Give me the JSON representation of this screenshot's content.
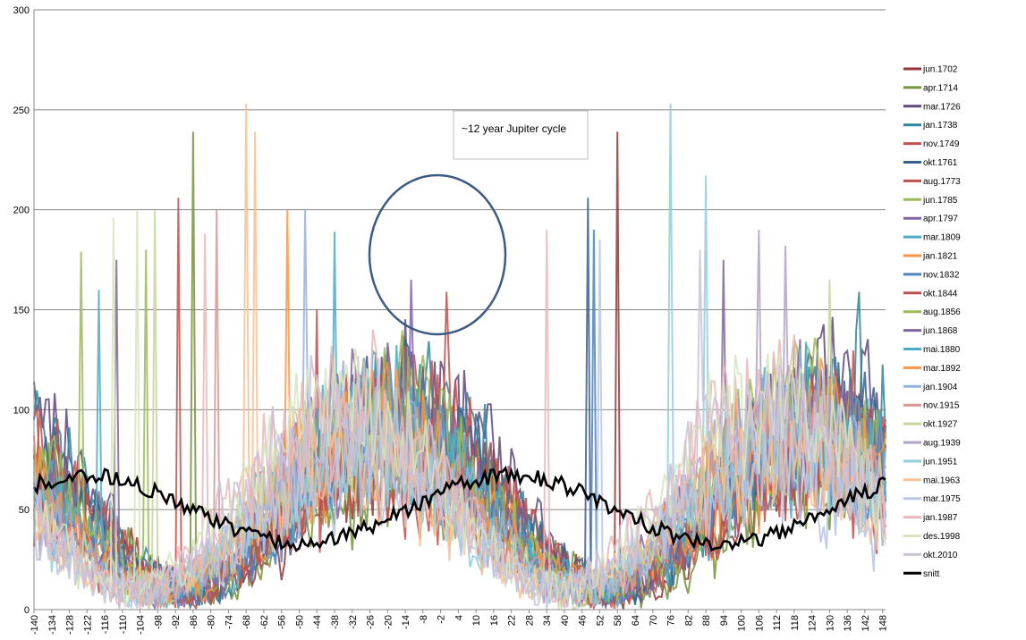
{
  "chart_data": {
    "type": "line",
    "title": "",
    "xlabel": "",
    "ylabel": "",
    "ylim": [
      0,
      300
    ],
    "xlim": [
      -140,
      149
    ],
    "y_ticks": [
      0,
      50,
      100,
      150,
      200,
      250,
      300
    ],
    "x_ticks": [
      -140,
      -134,
      -128,
      -122,
      -116,
      -110,
      -104,
      -98,
      -92,
      -86,
      -80,
      -74,
      -68,
      -62,
      -56,
      -50,
      -44,
      -38,
      -32,
      -26,
      -20,
      -14,
      -8,
      -2,
      4,
      10,
      16,
      22,
      28,
      34,
      40,
      46,
      52,
      58,
      64,
      70,
      76,
      82,
      88,
      94,
      100,
      106,
      112,
      118,
      124,
      130,
      136,
      142,
      148
    ],
    "grid": "horizontal",
    "legend_position": "right",
    "annotation": {
      "text": "~12 year Jupiter cycle"
    },
    "series": [
      {
        "name": "jun.1702",
        "color": "#943634",
        "seed": 1,
        "peaks": [
          [
            58,
            239
          ]
        ]
      },
      {
        "name": "apr.1714",
        "color": "#76923c",
        "seed": 2,
        "peaks": [
          [
            -86,
            239
          ]
        ]
      },
      {
        "name": "mar.1726",
        "color": "#5f497a",
        "seed": 3,
        "peaks": []
      },
      {
        "name": "jan.1738",
        "color": "#31859c",
        "seed": 4,
        "peaks": [
          [
            140,
            159
          ]
        ]
      },
      {
        "name": "nov.1749",
        "color": "#c0504d",
        "seed": 5,
        "peaks": [
          [
            0,
            159
          ]
        ]
      },
      {
        "name": "okt.1761",
        "color": "#366092",
        "seed": 6,
        "peaks": [
          [
            48,
            206
          ]
        ]
      },
      {
        "name": "aug.1773",
        "color": "#c0504d",
        "seed": 7,
        "peaks": [
          [
            -91,
            206
          ]
        ]
      },
      {
        "name": "jun.1785",
        "color": "#9bbb59",
        "seed": 8,
        "peaks": [
          [
            -102,
            180
          ]
        ]
      },
      {
        "name": "apr.1797",
        "color": "#8064a2",
        "seed": 9,
        "peaks": [
          [
            -12,
            165
          ],
          [
            94,
            175
          ]
        ]
      },
      {
        "name": "mar.1809",
        "color": "#4bacc6",
        "seed": 10,
        "peaks": [
          [
            -38,
            189
          ]
        ]
      },
      {
        "name": "jan.1821",
        "color": "#f79646",
        "seed": 11,
        "peaks": []
      },
      {
        "name": "nov.1832",
        "color": "#4f81bd",
        "seed": 12,
        "peaks": [
          [
            50,
            190
          ]
        ]
      },
      {
        "name": "okt.1844",
        "color": "#c0504d",
        "seed": 13,
        "peaks": [
          [
            -44,
            150
          ]
        ]
      },
      {
        "name": "aug.1856",
        "color": "#9bbb59",
        "seed": 14,
        "peaks": [
          [
            -124,
            179
          ]
        ]
      },
      {
        "name": "jun.1868",
        "color": "#8064a2",
        "seed": 15,
        "peaks": [
          [
            -112,
            175
          ]
        ]
      },
      {
        "name": "mai.1880",
        "color": "#4bacc6",
        "seed": 16,
        "peaks": [
          [
            -118,
            160
          ]
        ]
      },
      {
        "name": "mar.1892",
        "color": "#f79646",
        "seed": 17,
        "peaks": [
          [
            -54,
            200
          ]
        ]
      },
      {
        "name": "jan.1904",
        "color": "#95b3d7",
        "seed": 18,
        "peaks": [
          [
            -48,
            200
          ]
        ]
      },
      {
        "name": "nov.1915",
        "color": "#d99694",
        "seed": 19,
        "peaks": [
          [
            -78,
            200
          ]
        ]
      },
      {
        "name": "okt.1927",
        "color": "#c3d69b",
        "seed": 20,
        "peaks": [
          [
            -99,
            200
          ],
          [
            130,
            165
          ]
        ]
      },
      {
        "name": "aug.1939",
        "color": "#b2a2c7",
        "seed": 21,
        "peaks": [
          [
            106,
            190
          ],
          [
            115,
            182
          ]
        ]
      },
      {
        "name": "jun.1951",
        "color": "#92cddc",
        "seed": 22,
        "peaks": [
          [
            76,
            253
          ],
          [
            88,
            217
          ]
        ]
      },
      {
        "name": "mai.1963",
        "color": "#fac090",
        "seed": 23,
        "peaks": [
          [
            -68,
            253
          ],
          [
            -65,
            239
          ]
        ]
      },
      {
        "name": "mar.1975",
        "color": "#b9c7e3",
        "seed": 24,
        "peaks": [
          [
            52,
            185
          ]
        ]
      },
      {
        "name": "jan.1987",
        "color": "#e6b9b8",
        "seed": 25,
        "peaks": [
          [
            -82,
            188
          ],
          [
            34,
            190
          ]
        ]
      },
      {
        "name": "des.1998",
        "color": "#d7e4bd",
        "seed": 26,
        "peaks": [
          [
            -113,
            196
          ],
          [
            -105,
            200
          ]
        ]
      },
      {
        "name": "okt.2010",
        "color": "#ccc1da",
        "seed": 27,
        "peaks": [
          [
            86,
            180
          ]
        ]
      },
      {
        "name": "snitt",
        "color": "#000000",
        "seed": 0,
        "peaks": []
      }
    ]
  }
}
